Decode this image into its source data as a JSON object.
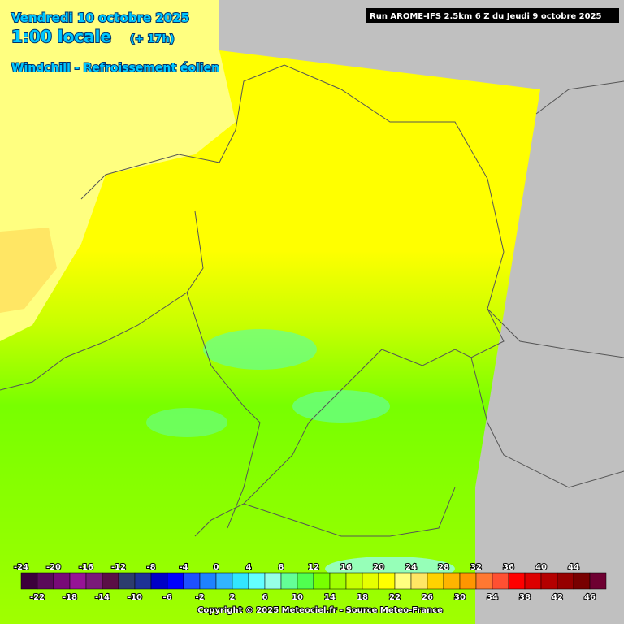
{
  "header": {
    "date": "Vendredi 10 octobre 2025",
    "time": "1:00 locale",
    "lead": "(+ 17h)",
    "parameter": "Windchill - Refroissement éolien",
    "run": "Run AROME-IFS 2.5km 6 Z du Jeudi 9 octobre 2025"
  },
  "footer": {
    "copyright": "Copyright © 2025 Meteociel.fr - Source Meteo-France"
  },
  "legend": {
    "ticks": [
      -24,
      -22,
      -20,
      -18,
      -16,
      -14,
      -12,
      -10,
      -8,
      -6,
      -4,
      -2,
      0,
      2,
      4,
      6,
      8,
      10,
      12,
      14,
      16,
      18,
      20,
      22,
      24,
      26,
      28,
      30,
      32,
      34,
      36,
      38,
      40,
      42,
      44,
      46
    ],
    "colors": [
      "#3c003c",
      "#5a0a5a",
      "#780a78",
      "#961496",
      "#7a1a7a",
      "#5a0f46",
      "#2d3c6e",
      "#1e3296",
      "#0000c8",
      "#0000ff",
      "#1e50ff",
      "#1e82ff",
      "#32b4ff",
      "#32e6ff",
      "#64ffff",
      "#96ffe6",
      "#64ff96",
      "#50ff50",
      "#78ff00",
      "#a0ff00",
      "#c8ff00",
      "#e6ff00",
      "#ffff00",
      "#ffff80",
      "#ffe664",
      "#ffd200",
      "#ffb400",
      "#ff9600",
      "#ff7832",
      "#ff5032",
      "#ff0000",
      "#dc0000",
      "#b40000",
      "#960000",
      "#780000",
      "#6e0032"
    ]
  }
}
